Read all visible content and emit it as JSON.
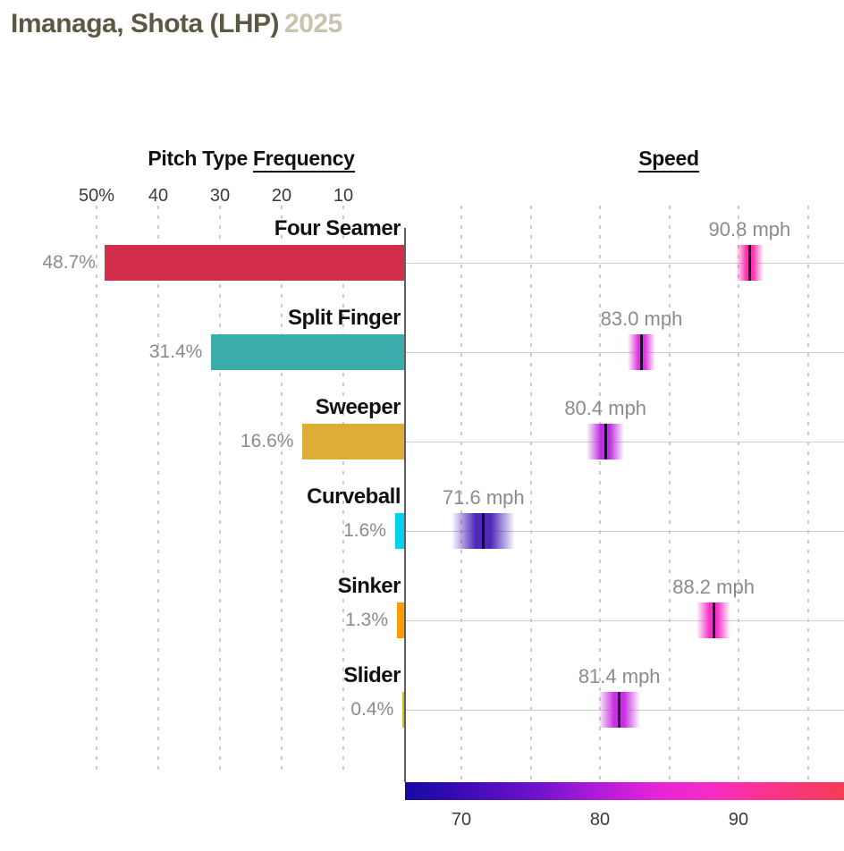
{
  "header": {
    "player_name": "Imanaga, Shota (LHP)",
    "season": "2025",
    "player_color": "#5d5844",
    "season_color": "#c8c3ae"
  },
  "colors": {
    "axis_line": "#5f5f5f",
    "gridline": "#cccccc",
    "muted_label": "#8b8b8b",
    "dark_label": "#111111"
  },
  "chart_data": {
    "type": "bar",
    "left_chart": {
      "title_plain": "Pitch Type ",
      "title_underlined": "Frequency",
      "unit": "percent",
      "axis_ticks": [
        {
          "label": "50%",
          "value": 50
        },
        {
          "label": "40",
          "value": 40
        },
        {
          "label": "30",
          "value": 30
        },
        {
          "label": "20",
          "value": 20
        },
        {
          "label": "10",
          "value": 10
        }
      ]
    },
    "right_chart": {
      "title_underlined": "Speed",
      "unit": "mph",
      "axis_ticks": [
        {
          "label": "70",
          "value": 70
        },
        {
          "label": "80",
          "value": 80
        },
        {
          "label": "90",
          "value": 90
        }
      ],
      "gridline_values": [
        70,
        75,
        80,
        85,
        90,
        95
      ],
      "axis_range_mph": [
        65.9,
        97.6
      ],
      "gradient_stops": [
        {
          "color": "#1509a2",
          "pos": 0
        },
        {
          "color": "#3c0bb5",
          "pos": 13
        },
        {
          "color": "#6f12cb",
          "pos": 30
        },
        {
          "color": "#b01bd9",
          "pos": 44
        },
        {
          "color": "#e524d9",
          "pos": 57
        },
        {
          "color": "#f72cc4",
          "pos": 70
        },
        {
          "color": "#fc3197",
          "pos": 80
        },
        {
          "color": "#f53c55",
          "pos": 100
        }
      ]
    },
    "pitches": [
      {
        "name": "Four Seamer",
        "frequency_pct": 48.7,
        "frequency_label": "48.7%",
        "bar_color": "#d22d49",
        "speed_mph": 90.8,
        "speed_label": "90.8 mph",
        "speed_color": "#fb33ab",
        "speed_spread_mph": 1.0
      },
      {
        "name": "Split Finger",
        "frequency_pct": 31.4,
        "frequency_label": "31.4%",
        "bar_color": "#3bacac",
        "speed_mph": 83.0,
        "speed_label": "83.0 mph",
        "speed_color": "#e032dd",
        "speed_spread_mph": 1.0
      },
      {
        "name": "Sweeper",
        "frequency_pct": 16.6,
        "frequency_label": "16.6%",
        "bar_color": "#dcae35",
        "speed_mph": 80.4,
        "speed_label": "80.4 mph",
        "speed_color": "#bf2ede",
        "speed_spread_mph": 1.35
      },
      {
        "name": "Curveball",
        "frequency_pct": 1.6,
        "frequency_label": "1.6%",
        "bar_color": "#00d1ed",
        "speed_mph": 71.6,
        "speed_label": "71.6 mph",
        "speed_color": "#4f28b8",
        "speed_spread_mph": 2.3
      },
      {
        "name": "Sinker",
        "frequency_pct": 1.3,
        "frequency_label": "1.3%",
        "bar_color": "#fe9d00",
        "speed_mph": 88.2,
        "speed_label": "88.2 mph",
        "speed_color": "#f633c8",
        "speed_spread_mph": 1.25
      },
      {
        "name": "Slider",
        "frequency_pct": 0.4,
        "frequency_label": "0.4%",
        "bar_color": "#c9c21c",
        "speed_mph": 81.4,
        "speed_label": "81.4 mph",
        "speed_color": "#c92fe0",
        "speed_spread_mph": 1.5
      }
    ]
  }
}
